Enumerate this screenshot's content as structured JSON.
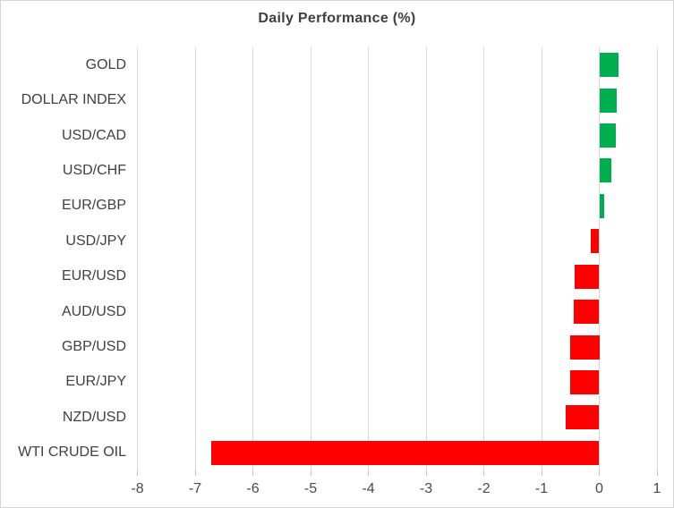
{
  "chart_data": {
    "type": "bar",
    "orientation": "horizontal",
    "title": "Daily Performance (%)",
    "categories": [
      "GOLD",
      "DOLLAR INDEX",
      "USD/CAD",
      "USD/CHF",
      "EUR/GBP",
      "USD/JPY",
      "EUR/USD",
      "AUD/USD",
      "GBP/USD",
      "EUR/JPY",
      "NZD/USD",
      "WTI CRUDE OIL"
    ],
    "values": [
      0.33,
      0.31,
      0.28,
      0.21,
      0.08,
      -0.15,
      -0.42,
      -0.44,
      -0.5,
      -0.51,
      -0.58,
      -6.72
    ],
    "xlabel": "",
    "ylabel": "",
    "xlim": [
      -8,
      1
    ],
    "xticks": [
      -8,
      -7,
      -6,
      -5,
      -4,
      -3,
      -2,
      -1,
      0,
      1
    ],
    "grid": true,
    "legend": false,
    "colors": {
      "positive": "#00AE50",
      "negative": "#FF0000"
    }
  }
}
